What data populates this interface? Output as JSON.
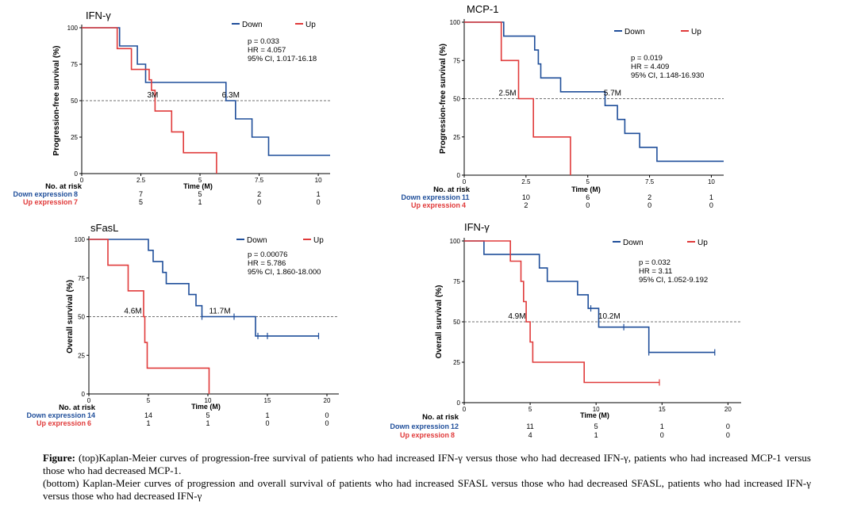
{
  "colors": {
    "down": "#1f4e9a",
    "up": "#e03a3a",
    "axis": "#000000",
    "ref": "#444444"
  },
  "caption": {
    "top_prefix": "Figure:",
    "top_text": " (top)Kaplan-Meier curves of progression-free survival of patients who had increased IFN-γ versus those who had decreased IFN-γ, patients who had increased MCP-1 versus those who had decreased MCP-1.",
    "bottom_text": "(bottom) Kaplan-Meier curves of progression and overall survival of patients who had increased SFASL versus those who had decreased SFASL, patients who had increased IFN-γ versus those who had decreased IFN-γ"
  },
  "chart_data": [
    {
      "type": "line",
      "title": "IFN-γ",
      "ylabel": "Progression-free survival (%)",
      "xlabel": "Time (M)",
      "xlim": [
        0,
        10.5
      ],
      "ylim": [
        0,
        100
      ],
      "xticks": [
        0,
        2.5,
        5,
        7.5,
        10
      ],
      "xtick_labels": [
        "0",
        "2.5",
        "5",
        "7.5",
        "10"
      ],
      "yticks": [
        0,
        25,
        50,
        75,
        100
      ],
      "ytick_labels": [
        "0",
        "25",
        "50",
        "75",
        "100"
      ],
      "ref_line": 50,
      "legend": [
        "Down",
        "Up"
      ],
      "stats": [
        "p = 0.033",
        "HR = 4.057",
        "95% CI, 1.017-16.18"
      ],
      "series": [
        {
          "name": "Down",
          "x": [
            0,
            1.6,
            1.6,
            2.35,
            2.35,
            2.7,
            2.7,
            6.1,
            6.1,
            6.5,
            6.5,
            7.2,
            7.2,
            7.9,
            7.9,
            10.5
          ],
          "y": [
            100,
            100,
            87.5,
            87.5,
            75,
            75,
            62.5,
            62.5,
            50,
            50,
            37.5,
            37.5,
            25,
            25,
            12.5,
            12.5
          ]
        },
        {
          "name": "Up",
          "x": [
            0,
            1.5,
            1.5,
            2.1,
            2.1,
            2.85,
            2.85,
            2.95,
            2.95,
            3.1,
            3.1,
            3.8,
            3.8,
            4.3,
            4.3,
            5.7,
            5.7
          ],
          "y": [
            100,
            100,
            85.7,
            85.7,
            71.4,
            71.4,
            64.3,
            64.3,
            57.1,
            57.1,
            42.9,
            42.9,
            28.6,
            28.6,
            14.3,
            14.3,
            0
          ]
        }
      ],
      "median_labels": [
        {
          "text": "3M",
          "x": 3.0
        },
        {
          "text": "6.3M",
          "x": 6.3
        }
      ],
      "risk_table": {
        "title": "No. at risk",
        "rows": [
          {
            "label": "Down expression",
            "first": "8",
            "values": [
              "7",
              "5",
              "2",
              "1"
            ]
          },
          {
            "label": "Up expression",
            "first": "7",
            "values": [
              "5",
              "1",
              "0",
              "0"
            ]
          }
        ]
      }
    },
    {
      "type": "line",
      "title": "MCP-1",
      "ylabel": "Progression-free survival (%)",
      "xlabel": "Time (M)",
      "xlim": [
        0,
        10.5
      ],
      "ylim": [
        0,
        100
      ],
      "xticks": [
        0,
        2.5,
        5,
        7.5,
        10
      ],
      "xtick_labels": [
        "0",
        "2.5",
        "5",
        "7.5",
        "10"
      ],
      "yticks": [
        0,
        25,
        50,
        75,
        100
      ],
      "ytick_labels": [
        "0",
        "25",
        "50",
        "75",
        "100"
      ],
      "ref_line": 50,
      "legend": [
        "Down",
        "Up"
      ],
      "stats": [
        "p = 0.019",
        "HR = 4.409",
        "95% CI, 1.148-16.930"
      ],
      "series": [
        {
          "name": "Down",
          "x": [
            0,
            1.6,
            1.6,
            2.85,
            2.85,
            3.0,
            3.0,
            3.1,
            3.1,
            3.2,
            3.2,
            3.9,
            3.9,
            5.7,
            5.7,
            5.9,
            5.9,
            6.2,
            6.2,
            6.5,
            6.5,
            7.1,
            7.1,
            7.8,
            7.8,
            10.5
          ],
          "y": [
            100,
            100,
            90.9,
            90.9,
            81.8,
            81.8,
            72.7,
            72.7,
            63.6,
            63.6,
            63.6,
            63.6,
            54.5,
            54.5,
            45.5,
            45.5,
            45.5,
            45.5,
            36.4,
            36.4,
            27.3,
            27.3,
            18.2,
            18.2,
            9.1,
            9.1
          ]
        },
        {
          "name": "Up",
          "x": [
            0,
            1.5,
            1.5,
            2.2,
            2.2,
            2.8,
            2.8,
            4.3,
            4.3
          ],
          "y": [
            100,
            100,
            75,
            75,
            50,
            50,
            25,
            25,
            0
          ]
        }
      ],
      "median_labels": [
        {
          "text": "2.5M",
          "x": 1.75
        },
        {
          "text": "5.7M",
          "x": 6.0
        }
      ],
      "risk_table": {
        "title": "No. at risk",
        "rows": [
          {
            "label": "Down expression",
            "first": "11",
            "values": [
              "10",
              "6",
              "2",
              "1"
            ]
          },
          {
            "label": "Up expression",
            "first": "4",
            "values": [
              "2",
              "0",
              "0",
              "0"
            ]
          }
        ]
      }
    },
    {
      "type": "line",
      "title": "sFasL",
      "ylabel": "Overall survival (%)",
      "xlabel": "Time (M)",
      "xlim": [
        0,
        21
      ],
      "ylim": [
        0,
        100
      ],
      "xticks": [
        0,
        5,
        10,
        15,
        20
      ],
      "xtick_labels": [
        "0",
        "5",
        "10",
        "15",
        "20"
      ],
      "yticks": [
        0,
        25,
        50,
        75,
        100
      ],
      "ytick_labels": [
        "0",
        "25",
        "50",
        "75",
        "100"
      ],
      "ref_line": 50,
      "legend": [
        "Down",
        "Up"
      ],
      "stats": [
        "p = 0.00076",
        "HR = 5.786",
        "95% CI, 1.860-18.000"
      ],
      "series": [
        {
          "name": "Down",
          "x": [
            0,
            5.0,
            5.0,
            5.4,
            5.4,
            5.6,
            5.6,
            6.2,
            6.2,
            6.5,
            6.5,
            8.4,
            8.4,
            9.0,
            9.0,
            9.5,
            9.5,
            14.0,
            14.0,
            19.3
          ],
          "y": [
            100,
            100,
            92.9,
            92.9,
            85.7,
            85.7,
            85.7,
            85.7,
            78.6,
            78.6,
            71.4,
            71.4,
            64.3,
            64.3,
            57.1,
            57.1,
            50,
            50,
            37.5,
            37.5
          ]
        },
        {
          "name": "Up",
          "x": [
            0,
            1.6,
            1.6,
            3.3,
            3.3,
            4.6,
            4.6,
            4.7,
            4.7,
            4.9,
            4.9,
            10.1,
            10.1
          ],
          "y": [
            100,
            100,
            83.3,
            83.3,
            66.7,
            66.7,
            50,
            50,
            33.3,
            33.3,
            16.7,
            16.7,
            0
          ]
        }
      ],
      "censor_marks": [
        {
          "series": "Down",
          "x": 9.5,
          "y": 50
        },
        {
          "series": "Down",
          "x": 12.2,
          "y": 50
        },
        {
          "series": "Down",
          "x": 14.2,
          "y": 37.5
        },
        {
          "series": "Down",
          "x": 15.0,
          "y": 37.5
        },
        {
          "series": "Down",
          "x": 19.3,
          "y": 37.5
        }
      ],
      "median_labels": [
        {
          "text": "4.6M",
          "x": 3.7
        },
        {
          "text": "11.7M",
          "x": 11.0
        }
      ],
      "risk_table": {
        "title": "No. at risk",
        "rows": [
          {
            "label": "Down expression",
            "first": "14",
            "values": [
              "14",
              "5",
              "1",
              "0"
            ]
          },
          {
            "label": "Up expression",
            "first": "6",
            "values": [
              "1",
              "1",
              "0",
              "0"
            ]
          }
        ]
      }
    },
    {
      "type": "line",
      "title": "IFN-γ",
      "ylabel": "Overall survival (%)",
      "xlabel": "Time (M)",
      "xlim": [
        0,
        21
      ],
      "ylim": [
        0,
        100
      ],
      "xticks": [
        0,
        5,
        10,
        15,
        20
      ],
      "xtick_labels": [
        "0",
        "5",
        "10",
        "15",
        "20"
      ],
      "yticks": [
        0,
        25,
        50,
        75,
        100
      ],
      "ytick_labels": [
        "0",
        "25",
        "50",
        "75",
        "100"
      ],
      "ref_line": 50,
      "legend": [
        "Down",
        "Up"
      ],
      "stats": [
        "p = 0.032",
        "HR = 3.11",
        "95% CI, 1.052-9.192"
      ],
      "series": [
        {
          "name": "Down",
          "x": [
            0,
            1.5,
            1.5,
            5.7,
            5.7,
            6.3,
            6.3,
            8.6,
            8.6,
            9.4,
            9.4,
            10.2,
            10.2,
            14.0,
            14.0,
            19.0
          ],
          "y": [
            100,
            100,
            91.7,
            91.7,
            83.3,
            83.3,
            75,
            75,
            66.7,
            66.7,
            58.3,
            58.3,
            46.7,
            46.7,
            31.1,
            31.1
          ]
        },
        {
          "name": "Up",
          "x": [
            0,
            3.5,
            3.5,
            4.3,
            4.3,
            4.5,
            4.5,
            4.7,
            4.7,
            5.0,
            5.0,
            5.2,
            5.2,
            9.1,
            9.1,
            14.8
          ],
          "y": [
            100,
            100,
            87.5,
            87.5,
            75,
            75,
            62.5,
            62.5,
            50,
            50,
            37.5,
            37.5,
            25,
            25,
            12.5,
            12.5
          ]
        }
      ],
      "censor_marks": [
        {
          "series": "Down",
          "x": 9.6,
          "y": 58.3
        },
        {
          "series": "Down",
          "x": 12.1,
          "y": 46.7
        },
        {
          "series": "Down",
          "x": 14.0,
          "y": 31.1
        },
        {
          "series": "Down",
          "x": 19.0,
          "y": 31.1
        },
        {
          "series": "Up",
          "x": 14.8,
          "y": 12.5
        }
      ],
      "median_labels": [
        {
          "text": "4.9M",
          "x": 4.0
        },
        {
          "text": "10.2M",
          "x": 11.0
        }
      ],
      "risk_table": {
        "title": "No. at risk",
        "rows": [
          {
            "label": "Down expression",
            "first": "12",
            "values": [
              "11",
              "5",
              "1",
              "0"
            ]
          },
          {
            "label": "Up expression",
            "first": "8",
            "values": [
              "4",
              "1",
              "0",
              "0"
            ]
          }
        ]
      }
    }
  ]
}
